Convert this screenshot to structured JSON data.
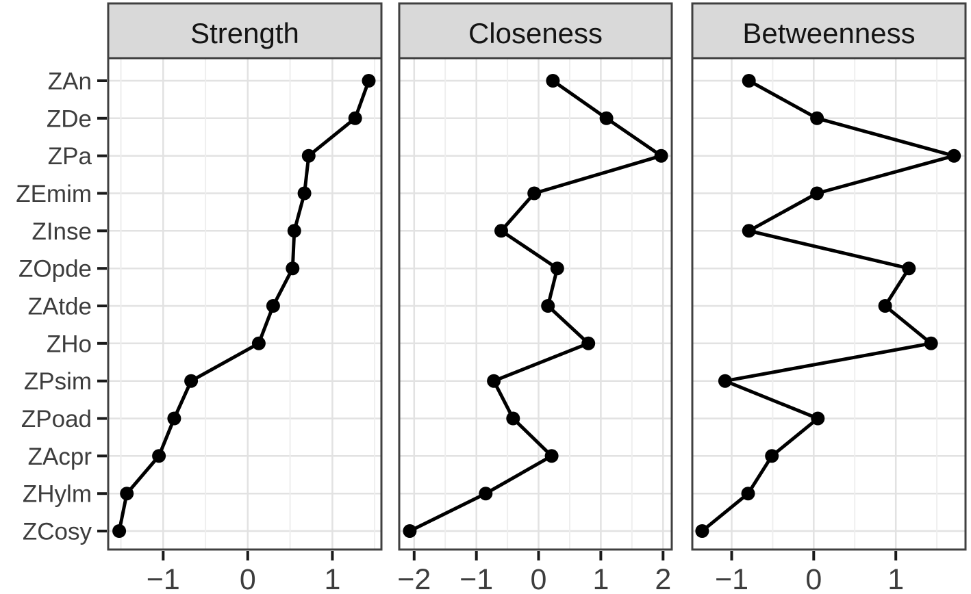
{
  "chart_data": {
    "type": "line",
    "layout": "3 horizontal facet panels sharing one categorical y-axis, points connected by lines (network centrality plot)",
    "categories": [
      "ZAn",
      "ZDe",
      "ZPa",
      "ZEmim",
      "ZInse",
      "ZOpde",
      "ZAtde",
      "ZHo",
      "ZPsim",
      "ZPoad",
      "ZAcpr",
      "ZHylm",
      "ZCosy"
    ],
    "facets": [
      {
        "label": "Strength",
        "values": [
          1.43,
          1.27,
          0.72,
          0.67,
          0.55,
          0.53,
          0.3,
          0.13,
          -0.67,
          -0.87,
          -1.05,
          -1.43,
          -1.52
        ],
        "xticks": [
          -1,
          0,
          1
        ],
        "xtick_labels": [
          "−1",
          "0",
          "1"
        ],
        "xlim": [
          -1.65,
          1.58
        ]
      },
      {
        "label": "Closeness",
        "values": [
          0.23,
          1.09,
          1.97,
          -0.07,
          -0.6,
          0.3,
          0.15,
          0.8,
          -0.72,
          -0.41,
          0.21,
          -0.85,
          -2.07
        ],
        "xticks": [
          -2,
          -1,
          0,
          1,
          2
        ],
        "xtick_labels": [
          "−2",
          "−1",
          "0",
          "1",
          "2"
        ],
        "xlim": [
          -2.24,
          2.14
        ]
      },
      {
        "label": "Betweenness",
        "values": [
          -0.79,
          0.04,
          1.71,
          0.04,
          -0.79,
          1.16,
          0.87,
          1.43,
          -1.08,
          0.05,
          -0.51,
          -0.8,
          -1.36
        ],
        "xticks": [
          -1,
          0,
          1
        ],
        "xtick_labels": [
          "−1",
          "0",
          "1"
        ],
        "xlim": [
          -1.48,
          1.85
        ]
      }
    ],
    "grid": {
      "major": true,
      "minor": true,
      "minor_step": 0.5
    },
    "legend": {
      "visible": false
    },
    "styles": {
      "line_color": "#000000",
      "point_color": "#000000",
      "strip_background": "#d9d9d9",
      "strip_border": "#404040",
      "panel_border": "#404040",
      "grid_major_color": "#e2e2e2",
      "grid_minor_color": "#eeeeee",
      "axis_text_color": "#3d3d3d",
      "tick_color": "#1a1a1a",
      "background": "#ffffff"
    }
  }
}
